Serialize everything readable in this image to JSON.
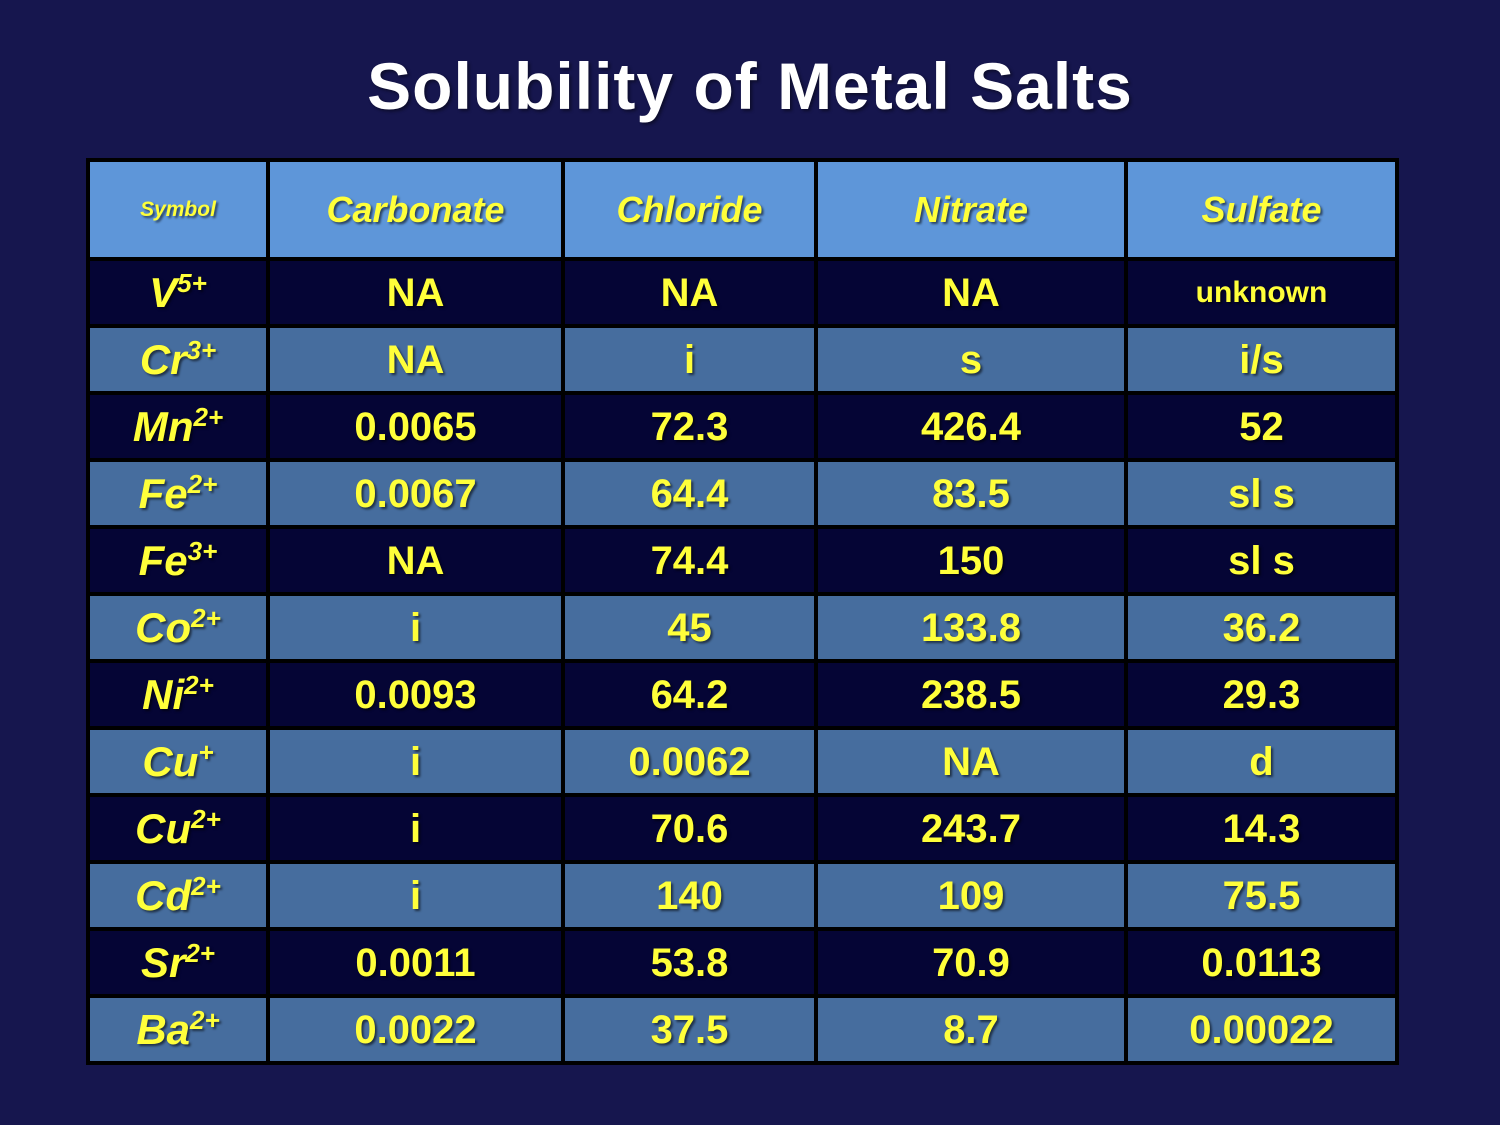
{
  "title": "Solubility of Metal Salts",
  "colors": {
    "background": "#16164e",
    "row_dark": "#050535",
    "row_blue": "#466d9e",
    "header_bg": "#5e96d9",
    "text_yellow": "#ffff3a",
    "title_color": "#ffffff",
    "border": "#000000"
  },
  "table": {
    "columns": [
      "Symbol",
      "Carbonate",
      "Chloride",
      "Nitrate",
      "Sulfate"
    ],
    "rows": [
      {
        "symbol": "V",
        "charge": "5+",
        "values": [
          "NA",
          "NA",
          "NA",
          "unknown"
        ]
      },
      {
        "symbol": "Cr",
        "charge": "3+",
        "values": [
          "NA",
          "i",
          "s",
          "i/s"
        ]
      },
      {
        "symbol": "Mn",
        "charge": "2+",
        "values": [
          "0.0065",
          "72.3",
          "426.4",
          "52"
        ]
      },
      {
        "symbol": "Fe",
        "charge": "2+",
        "values": [
          "0.0067",
          "64.4",
          "83.5",
          "sl s"
        ]
      },
      {
        "symbol": "Fe",
        "charge": "3+",
        "values": [
          "NA",
          "74.4",
          "150",
          "sl s"
        ]
      },
      {
        "symbol": "Co",
        "charge": "2+",
        "values": [
          "i",
          "45",
          "133.8",
          "36.2"
        ]
      },
      {
        "symbol": "Ni",
        "charge": "2+",
        "values": [
          "0.0093",
          "64.2",
          "238.5",
          "29.3"
        ]
      },
      {
        "symbol": "Cu",
        "charge": "+",
        "values": [
          "i",
          "0.0062",
          "NA",
          "d"
        ]
      },
      {
        "symbol": "Cu",
        "charge": "2+",
        "values": [
          "i",
          "70.6",
          "243.7",
          "14.3"
        ]
      },
      {
        "symbol": "Cd",
        "charge": "2+",
        "values": [
          "i",
          "140",
          "109",
          "75.5"
        ]
      },
      {
        "symbol": "Sr",
        "charge": "2+",
        "values": [
          "0.0011",
          "53.8",
          "70.9",
          "0.0113"
        ]
      },
      {
        "symbol": "Ba",
        "charge": "2+",
        "values": [
          "0.0022",
          "37.5",
          "8.7",
          "0.00022"
        ]
      }
    ],
    "small_values": [
      "unknown"
    ]
  }
}
